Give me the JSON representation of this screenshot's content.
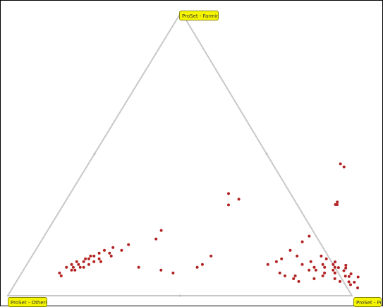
{
  "chart_data": {
    "type": "scatter",
    "subtype": "ternary",
    "axes": {
      "top": "ProSet - Farming",
      "left": "ProSet - Others",
      "right": "ProSet - Pred"
    },
    "colors": {
      "point": "#b22222",
      "frame": "#c8c8c8",
      "label_bg": "#f5f500"
    },
    "grid": false,
    "points": [
      [
        0.87,
        0.52
      ],
      [
        0.87,
        0.53
      ],
      [
        0.58,
        0.66
      ],
      [
        0.56,
        0.67
      ],
      [
        0.55,
        0.67
      ],
      [
        0.36,
        0.46
      ],
      [
        0.32,
        0.48
      ],
      [
        0.34,
        0.5
      ],
      [
        0.23,
        0.33
      ],
      [
        0.2,
        0.33
      ],
      [
        0.1,
        0.12
      ],
      [
        0.09,
        0.14
      ],
      [
        0.09,
        0.15
      ],
      [
        0.1,
        0.14
      ],
      [
        0.1,
        0.17
      ],
      [
        0.11,
        0.15
      ],
      [
        0.11,
        0.18
      ],
      [
        0.12,
        0.16
      ],
      [
        0.12,
        0.19
      ],
      [
        0.12,
        0.21
      ],
      [
        0.13,
        0.16
      ],
      [
        0.13,
        0.2
      ],
      [
        0.14,
        0.18
      ],
      [
        0.14,
        0.23
      ],
      [
        0.15,
        0.19
      ],
      [
        0.15,
        0.22
      ],
      [
        0.16,
        0.25
      ],
      [
        0.16,
        0.2
      ],
      [
        0.17,
        0.22
      ],
      [
        0.11,
        0.13
      ],
      [
        0.12,
        0.14
      ],
      [
        0.08,
        0.11
      ],
      [
        0.07,
        0.12
      ],
      [
        0.13,
        0.17
      ],
      [
        0.18,
        0.26
      ],
      [
        0.14,
        0.17
      ],
      [
        0.1,
        0.16
      ],
      [
        0.1,
        0.33
      ],
      [
        0.09,
        0.4
      ],
      [
        0.08,
        0.44
      ],
      [
        0.14,
        0.52
      ],
      [
        0.11,
        0.51
      ],
      [
        0.1,
        0.5
      ],
      [
        0.12,
        0.72
      ],
      [
        0.13,
        0.73
      ],
      [
        0.11,
        0.7
      ],
      [
        0.19,
        0.76
      ],
      [
        0.21,
        0.77
      ],
      [
        0.16,
        0.74
      ],
      [
        0.07,
        0.77
      ],
      [
        0.08,
        0.75
      ],
      [
        0.14,
        0.77
      ],
      [
        0.12,
        0.82
      ],
      [
        0.11,
        0.8
      ],
      [
        0.1,
        0.84
      ],
      [
        0.09,
        0.83
      ],
      [
        0.09,
        0.85
      ],
      [
        0.1,
        0.87
      ],
      [
        0.11,
        0.89
      ],
      [
        0.12,
        0.9
      ],
      [
        0.1,
        0.9
      ],
      [
        0.08,
        0.88
      ],
      [
        0.09,
        0.9
      ],
      [
        0.11,
        0.86
      ],
      [
        0.13,
        0.86
      ],
      [
        0.14,
        0.88
      ],
      [
        0.15,
        0.92
      ],
      [
        0.16,
        0.9
      ],
      [
        0.13,
        0.91
      ],
      [
        0.17,
        0.93
      ],
      [
        0.18,
        0.89
      ],
      [
        0.14,
        0.84
      ],
      [
        0.12,
        0.93
      ],
      [
        0.1,
        0.93
      ],
      [
        0.08,
        0.91
      ],
      [
        0.07,
        0.88
      ],
      [
        0.06,
        0.86
      ],
      [
        0.05,
        0.82
      ],
      [
        0.06,
        0.8
      ],
      [
        0.07,
        0.8
      ],
      [
        0.06,
        0.92
      ],
      [
        0.05,
        0.94
      ],
      [
        0.07,
        0.96
      ],
      [
        0.09,
        0.97
      ],
      [
        0.11,
        0.95
      ],
      [
        0.08,
        0.95
      ]
    ]
  }
}
